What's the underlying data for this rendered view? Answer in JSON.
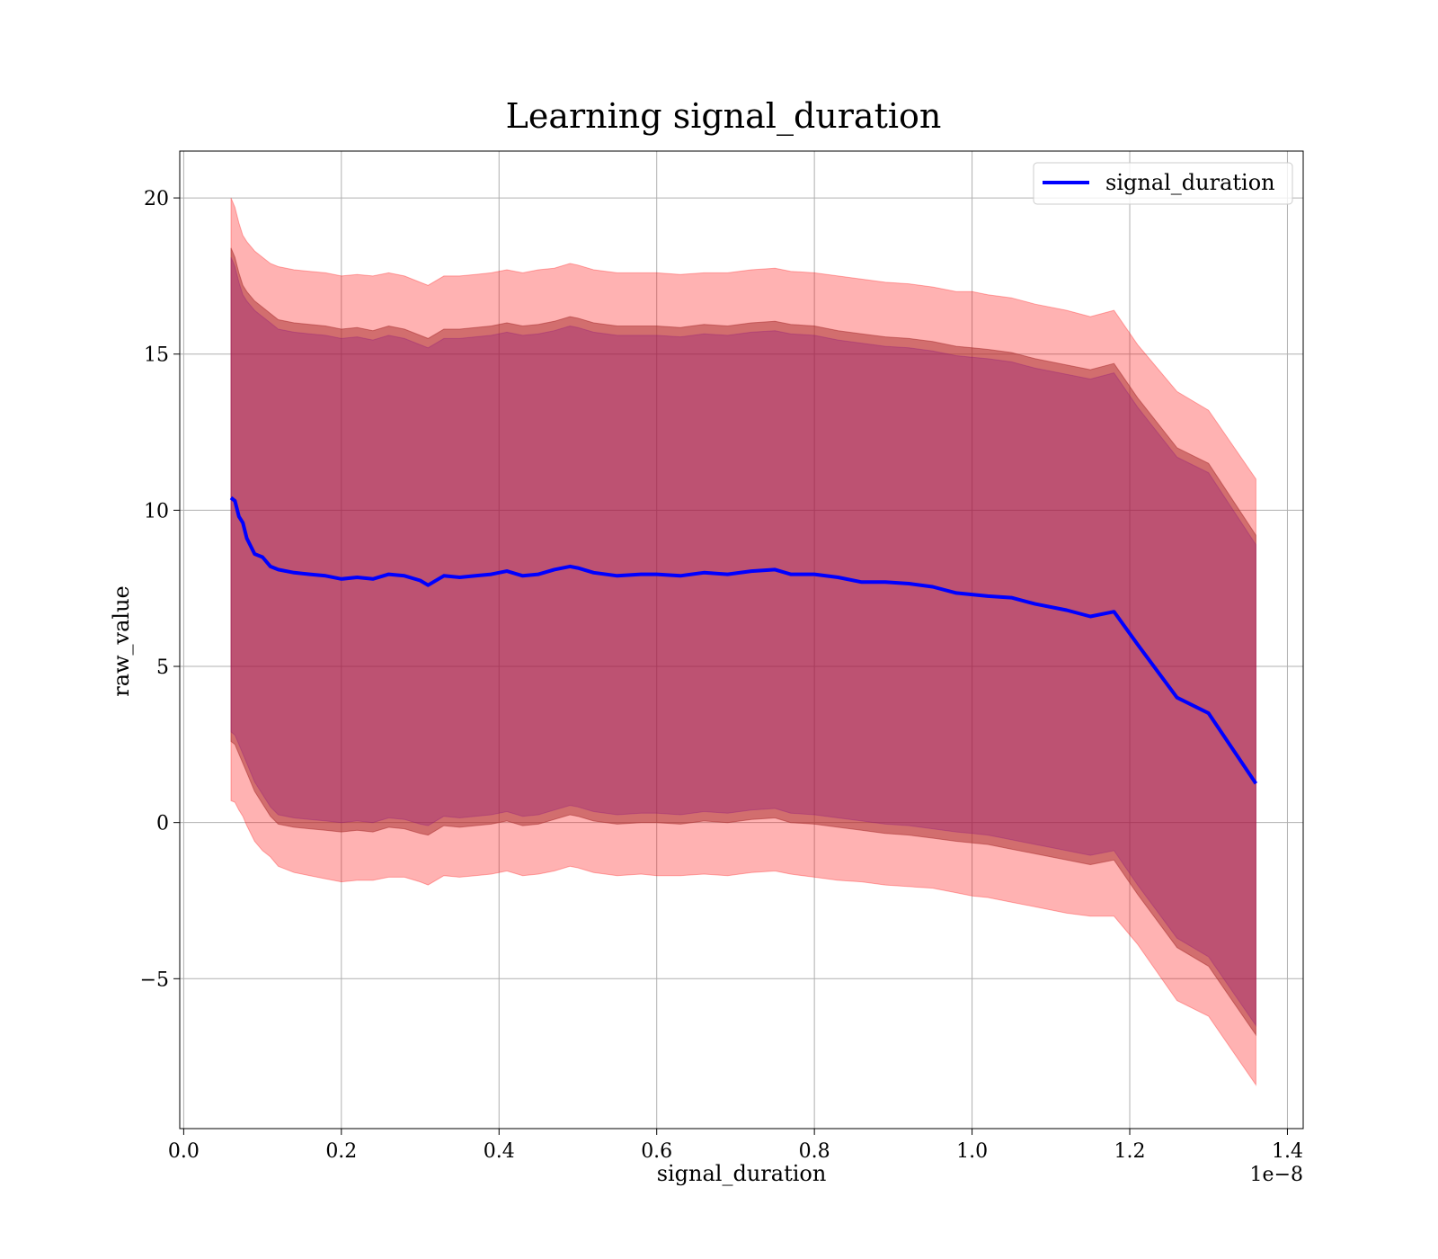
{
  "chart_data": {
    "type": "line",
    "title": "Learning signal_duration",
    "xlabel": "signal_duration",
    "ylabel": "raw_value",
    "x_offset_label": "1e−8",
    "xlim": [
      -0.005,
      1.42
    ],
    "ylim": [
      -9.8,
      21.5
    ],
    "x_ticks": [
      0.0,
      0.2,
      0.4,
      0.6,
      0.8,
      1.0,
      1.2,
      1.4
    ],
    "x_tick_labels": [
      "0.0",
      "0.2",
      "0.4",
      "0.6",
      "0.8",
      "1.0",
      "1.2",
      "1.4"
    ],
    "y_ticks": [
      -5,
      0,
      5,
      10,
      15,
      20
    ],
    "y_tick_labels": [
      "−5",
      "0",
      "5",
      "10",
      "15",
      "20"
    ],
    "grid": true,
    "legend": {
      "position": "top-right",
      "entries": [
        "signal_duration"
      ]
    },
    "colors": {
      "mean_line": "#0000ff",
      "outer_band": "#ff0000",
      "middle_band": "#a52a2a",
      "inner_band": "#800080"
    },
    "x": [
      0.06,
      0.065,
      0.07,
      0.075,
      0.08,
      0.09,
      0.1,
      0.11,
      0.12,
      0.14,
      0.16,
      0.18,
      0.2,
      0.22,
      0.24,
      0.26,
      0.28,
      0.3,
      0.31,
      0.33,
      0.35,
      0.37,
      0.39,
      0.41,
      0.43,
      0.45,
      0.47,
      0.49,
      0.5,
      0.52,
      0.55,
      0.58,
      0.6,
      0.63,
      0.66,
      0.69,
      0.72,
      0.75,
      0.77,
      0.8,
      0.83,
      0.86,
      0.89,
      0.92,
      0.95,
      0.98,
      1.0,
      1.02,
      1.05,
      1.08,
      1.12,
      1.15,
      1.18,
      1.21,
      1.26,
      1.3,
      1.36
    ],
    "series": [
      {
        "name": "signal_duration",
        "role": "mean",
        "values": [
          10.4,
          10.3,
          9.8,
          9.6,
          9.1,
          8.6,
          8.5,
          8.2,
          8.1,
          8.0,
          7.95,
          7.9,
          7.8,
          7.85,
          7.8,
          7.95,
          7.9,
          7.75,
          7.6,
          7.9,
          7.85,
          7.9,
          7.95,
          8.05,
          7.9,
          7.95,
          8.1,
          8.2,
          8.15,
          8.0,
          7.9,
          7.95,
          7.95,
          7.9,
          8.0,
          7.95,
          8.05,
          8.1,
          7.95,
          7.95,
          7.85,
          7.7,
          7.7,
          7.65,
          7.55,
          7.35,
          7.3,
          7.25,
          7.2,
          7.0,
          6.8,
          6.6,
          6.75,
          5.7,
          4.0,
          3.5,
          1.25
        ]
      },
      {
        "name": "outer upper",
        "role": "band",
        "values": [
          20.0,
          19.7,
          19.2,
          18.8,
          18.6,
          18.3,
          18.1,
          17.9,
          17.8,
          17.7,
          17.65,
          17.6,
          17.5,
          17.55,
          17.5,
          17.6,
          17.5,
          17.3,
          17.2,
          17.5,
          17.5,
          17.55,
          17.6,
          17.7,
          17.6,
          17.7,
          17.75,
          17.9,
          17.85,
          17.7,
          17.6,
          17.6,
          17.6,
          17.55,
          17.6,
          17.6,
          17.7,
          17.75,
          17.65,
          17.6,
          17.5,
          17.4,
          17.3,
          17.25,
          17.15,
          17.0,
          17.0,
          16.9,
          16.8,
          16.6,
          16.4,
          16.2,
          16.4,
          15.3,
          13.8,
          13.2,
          11.0
        ]
      },
      {
        "name": "outer lower",
        "role": "band",
        "values": [
          0.7,
          0.65,
          0.4,
          0.2,
          -0.1,
          -0.6,
          -0.9,
          -1.1,
          -1.4,
          -1.6,
          -1.7,
          -1.8,
          -1.9,
          -1.85,
          -1.85,
          -1.75,
          -1.75,
          -1.9,
          -2.0,
          -1.7,
          -1.75,
          -1.7,
          -1.65,
          -1.55,
          -1.7,
          -1.65,
          -1.55,
          -1.4,
          -1.45,
          -1.6,
          -1.7,
          -1.65,
          -1.7,
          -1.7,
          -1.65,
          -1.7,
          -1.6,
          -1.55,
          -1.65,
          -1.75,
          -1.85,
          -1.9,
          -2.0,
          -2.05,
          -2.1,
          -2.25,
          -2.35,
          -2.4,
          -2.55,
          -2.7,
          -2.9,
          -3.0,
          -3.0,
          -3.9,
          -5.7,
          -6.2,
          -8.4
        ]
      },
      {
        "name": "middle upper",
        "role": "band",
        "values": [
          18.4,
          18.1,
          17.6,
          17.2,
          17.0,
          16.7,
          16.5,
          16.3,
          16.1,
          16.0,
          15.95,
          15.9,
          15.8,
          15.85,
          15.75,
          15.9,
          15.8,
          15.6,
          15.5,
          15.8,
          15.8,
          15.85,
          15.9,
          16.0,
          15.9,
          15.95,
          16.05,
          16.2,
          16.15,
          16.0,
          15.9,
          15.9,
          15.9,
          15.85,
          15.95,
          15.9,
          16.0,
          16.05,
          15.95,
          15.9,
          15.75,
          15.65,
          15.55,
          15.5,
          15.4,
          15.25,
          15.2,
          15.15,
          15.05,
          14.85,
          14.65,
          14.5,
          14.7,
          13.6,
          12.0,
          11.5,
          9.2
        ]
      },
      {
        "name": "middle lower",
        "role": "band",
        "values": [
          2.6,
          2.5,
          2.2,
          1.9,
          1.6,
          1.0,
          0.6,
          0.2,
          -0.05,
          -0.15,
          -0.2,
          -0.25,
          -0.3,
          -0.25,
          -0.3,
          -0.15,
          -0.2,
          -0.35,
          -0.4,
          -0.1,
          -0.15,
          -0.1,
          -0.05,
          0.05,
          -0.1,
          -0.05,
          0.1,
          0.25,
          0.2,
          0.05,
          -0.05,
          0.0,
          0.0,
          -0.05,
          0.05,
          0.0,
          0.1,
          0.15,
          0.0,
          -0.05,
          -0.15,
          -0.25,
          -0.35,
          -0.4,
          -0.5,
          -0.6,
          -0.65,
          -0.7,
          -0.85,
          -1.0,
          -1.2,
          -1.35,
          -1.2,
          -2.3,
          -4.0,
          -4.6,
          -6.8
        ]
      },
      {
        "name": "inner upper",
        "role": "band",
        "values": [
          18.1,
          17.8,
          17.3,
          16.9,
          16.7,
          16.4,
          16.2,
          16.0,
          15.8,
          15.7,
          15.65,
          15.6,
          15.5,
          15.55,
          15.45,
          15.6,
          15.5,
          15.3,
          15.2,
          15.5,
          15.5,
          15.55,
          15.6,
          15.7,
          15.6,
          15.65,
          15.75,
          15.9,
          15.85,
          15.7,
          15.6,
          15.6,
          15.6,
          15.55,
          15.65,
          15.6,
          15.7,
          15.75,
          15.65,
          15.6,
          15.45,
          15.35,
          15.25,
          15.2,
          15.1,
          14.95,
          14.9,
          14.85,
          14.75,
          14.55,
          14.35,
          14.2,
          14.4,
          13.3,
          11.7,
          11.2,
          8.9
        ]
      },
      {
        "name": "inner lower",
        "role": "band",
        "values": [
          2.9,
          2.8,
          2.5,
          2.2,
          1.9,
          1.3,
          0.9,
          0.5,
          0.25,
          0.15,
          0.1,
          0.05,
          0.0,
          0.05,
          0.0,
          0.15,
          0.1,
          -0.05,
          -0.1,
          0.2,
          0.15,
          0.2,
          0.25,
          0.35,
          0.2,
          0.25,
          0.4,
          0.55,
          0.5,
          0.35,
          0.25,
          0.3,
          0.3,
          0.25,
          0.35,
          0.3,
          0.4,
          0.45,
          0.3,
          0.25,
          0.15,
          0.05,
          -0.05,
          -0.1,
          -0.2,
          -0.3,
          -0.35,
          -0.4,
          -0.55,
          -0.7,
          -0.9,
          -1.05,
          -0.9,
          -2.0,
          -3.7,
          -4.3,
          -6.5
        ]
      }
    ]
  }
}
